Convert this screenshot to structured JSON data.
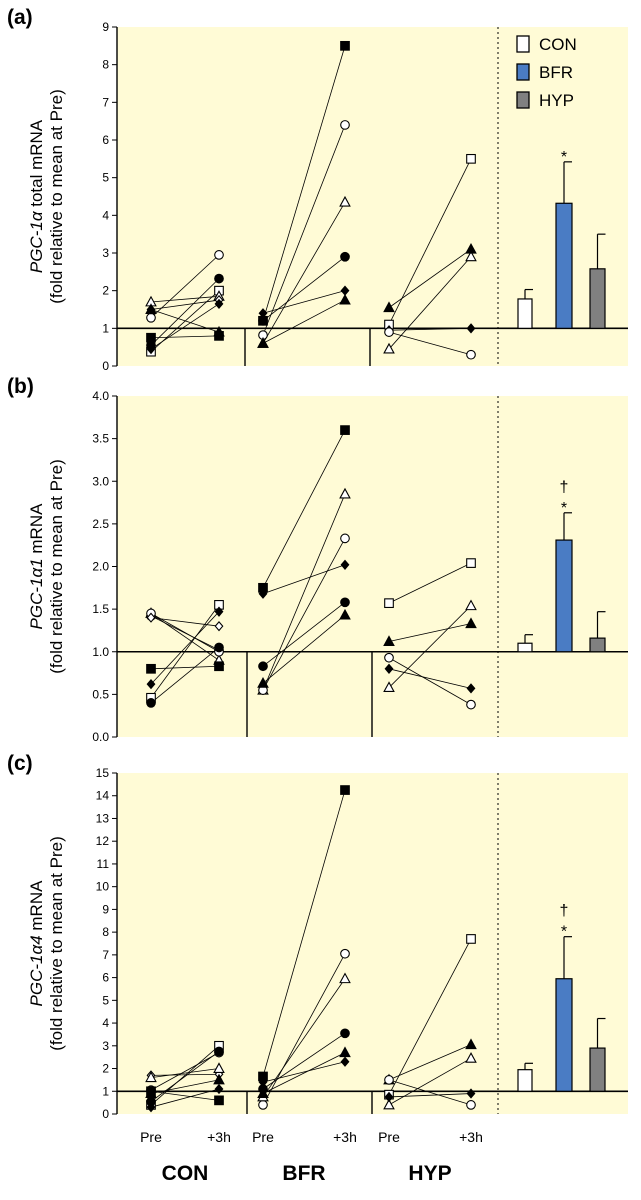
{
  "chart_data": {
    "type": "multi-panel paired scatter with bar summary",
    "x_labels": [
      "Pre",
      "+3h",
      "Pre",
      "+3h",
      "Pre",
      "+3h"
    ],
    "groups": [
      "CON",
      "BFR",
      "HYP"
    ],
    "legend": [
      {
        "name": "CON",
        "color": "#ffffff"
      },
      {
        "name": "BFR",
        "color": "#4a7cc4"
      },
      {
        "name": "HYP",
        "color": "#808080"
      }
    ],
    "colors": {
      "background": "#fffbd6",
      "bfr": "#4a7cc4",
      "hyp": "#808080"
    },
    "panels": [
      {
        "label": "(a)",
        "ylabel_italic": "PGC-1α",
        "ylabel_rest": " total mRNA",
        "ylabel_line2": "(fold relative to mean at Pre)",
        "ylim": [
          0,
          9
        ],
        "yticks": [
          0,
          1,
          2,
          3,
          4,
          5,
          6,
          7,
          8,
          9
        ],
        "tick_labels": [
          "0",
          "1",
          "2",
          "3",
          "4",
          "5",
          "6",
          "7",
          "8",
          "9"
        ],
        "subjects": {
          "CON": [
            {
              "marker": "square-open",
              "pre": 0.38,
              "post": 2.0
            },
            {
              "marker": "circle-open",
              "pre": 1.28,
              "post": 2.95
            },
            {
              "marker": "triangle-open",
              "pre": 1.7,
              "post": 1.85
            },
            {
              "marker": "diamond-open",
              "pre": 1.5,
              "post": 1.75
            },
            {
              "marker": "square-filled",
              "pre": 0.75,
              "post": 0.8
            },
            {
              "marker": "circle-filled",
              "pre": 0.55,
              "post": 2.32
            },
            {
              "marker": "triangle-filled",
              "pre": 1.5,
              "post": 0.9
            },
            {
              "marker": "diamond-filled",
              "pre": 0.45,
              "post": 1.65
            }
          ],
          "BFR": [
            {
              "marker": "square-filled",
              "pre": 1.2,
              "post": 8.5
            },
            {
              "marker": "circle-open",
              "pre": 0.82,
              "post": 6.4
            },
            {
              "marker": "triangle-open",
              "pre": 0.6,
              "post": 4.35
            },
            {
              "marker": "circle-filled",
              "pre": 1.2,
              "post": 2.9
            },
            {
              "marker": "diamond-filled",
              "pre": 1.4,
              "post": 2.0
            },
            {
              "marker": "triangle-filled",
              "pre": 0.6,
              "post": 1.75
            }
          ],
          "HYP": [
            {
              "marker": "square-open",
              "pre": 1.1,
              "post": 5.5
            },
            {
              "marker": "triangle-open",
              "pre": 0.45,
              "post": 2.9
            },
            {
              "marker": "triangle-filled",
              "pre": 1.55,
              "post": 3.1
            },
            {
              "marker": "diamond-filled",
              "pre": 0.95,
              "post": 1.0
            },
            {
              "marker": "circle-open",
              "pre": 0.9,
              "post": 0.3
            }
          ]
        },
        "bars": [
          {
            "group": "CON",
            "mean": 1.78,
            "err": 0.25
          },
          {
            "group": "BFR",
            "mean": 4.32,
            "err": 1.1
          },
          {
            "group": "HYP",
            "mean": 2.58,
            "err": 0.92
          }
        ],
        "annotations": {
          "BFR": "*"
        }
      },
      {
        "label": "(b)",
        "ylabel_italic": "PGC-1α1",
        "ylabel_rest": " mRNA",
        "ylabel_line2": "(fold relative to mean at Pre)",
        "ylim": [
          0,
          4
        ],
        "yticks": [
          0,
          0.5,
          1,
          1.5,
          2,
          2.5,
          3,
          3.5,
          4
        ],
        "tick_labels": [
          "0.0",
          "0.5",
          "1.0",
          "1.5",
          "2.0",
          "2.5",
          "3.0",
          "3.5",
          "4.0"
        ],
        "subjects": {
          "CON": [
            {
              "marker": "triangle-open",
              "pre": 1.45,
              "post": 0.9
            },
            {
              "marker": "circle-open",
              "pre": 1.42,
              "post": 1.02
            },
            {
              "marker": "circle-open",
              "pre": 1.45,
              "post": 1.0
            },
            {
              "marker": "square-open",
              "pre": 0.46,
              "post": 1.55
            },
            {
              "marker": "circle-filled",
              "pre": 0.4,
              "post": 1.05
            },
            {
              "marker": "square-filled",
              "pre": 0.8,
              "post": 0.83
            },
            {
              "marker": "diamond-filled",
              "pre": 0.62,
              "post": 1.47
            },
            {
              "marker": "diamond-open",
              "pre": 1.4,
              "post": 1.3
            }
          ],
          "BFR": [
            {
              "marker": "square-filled",
              "pre": 1.75,
              "post": 3.6
            },
            {
              "marker": "diamond-filled",
              "pre": 1.68,
              "post": 2.02
            },
            {
              "marker": "triangle-open",
              "pre": 0.55,
              "post": 2.85
            },
            {
              "marker": "circle-open",
              "pre": 0.55,
              "post": 2.33
            },
            {
              "marker": "circle-filled",
              "pre": 0.83,
              "post": 1.58
            },
            {
              "marker": "triangle-filled",
              "pre": 0.63,
              "post": 1.43
            }
          ],
          "HYP": [
            {
              "marker": "square-open",
              "pre": 1.57,
              "post": 2.04
            },
            {
              "marker": "triangle-open",
              "pre": 0.58,
              "post": 1.54
            },
            {
              "marker": "triangle-filled",
              "pre": 1.12,
              "post": 1.33
            },
            {
              "marker": "diamond-filled",
              "pre": 0.8,
              "post": 0.57
            },
            {
              "marker": "circle-open",
              "pre": 0.93,
              "post": 0.38
            }
          ]
        },
        "bars": [
          {
            "group": "CON",
            "mean": 1.1,
            "err": 0.1
          },
          {
            "group": "BFR",
            "mean": 2.31,
            "err": 0.32
          },
          {
            "group": "HYP",
            "mean": 1.16,
            "err": 0.31
          }
        ],
        "annotations": {
          "BFR": "†\n*"
        }
      },
      {
        "label": "(c)",
        "ylabel_italic": "PGC-1α4",
        "ylabel_rest": " mRNA",
        "ylabel_line2": "(fold relative to mean at Pre)",
        "ylim": [
          0,
          15
        ],
        "yticks": [
          0,
          1,
          2,
          3,
          4,
          5,
          6,
          7,
          8,
          9,
          10,
          11,
          12,
          13,
          14,
          15
        ],
        "tick_labels": [
          "0",
          "1",
          "2",
          "3",
          "4",
          "5",
          "6",
          "7",
          "8",
          "9",
          "10",
          "11",
          "12",
          "13",
          "14",
          "15"
        ],
        "subjects": {
          "CON": [
            {
              "marker": "square-open",
              "pre": 0.4,
              "post": 3.0
            },
            {
              "marker": "circle-open",
              "pre": 1.05,
              "post": 2.7
            },
            {
              "marker": "diamond-open",
              "pre": 1.7,
              "post": 1.75
            },
            {
              "marker": "triangle-open",
              "pre": 1.6,
              "post": 2.0
            },
            {
              "marker": "circle-filled",
              "pre": 0.55,
              "post": 2.75
            },
            {
              "marker": "square-filled",
              "pre": 1.0,
              "post": 0.6
            },
            {
              "marker": "triangle-filled",
              "pre": 0.9,
              "post": 1.5
            },
            {
              "marker": "diamond-filled",
              "pre": 0.3,
              "post": 1.1
            }
          ],
          "BFR": [
            {
              "marker": "square-filled",
              "pre": 1.65,
              "post": 14.25
            },
            {
              "marker": "circle-open",
              "pre": 0.4,
              "post": 7.05
            },
            {
              "marker": "triangle-open",
              "pre": 0.75,
              "post": 5.95
            },
            {
              "marker": "circle-filled",
              "pre": 1.1,
              "post": 3.55
            },
            {
              "marker": "triangle-filled",
              "pre": 0.9,
              "post": 2.7
            },
            {
              "marker": "diamond-filled",
              "pre": 1.4,
              "post": 2.3
            }
          ],
          "HYP": [
            {
              "marker": "square-open",
              "pre": 0.85,
              "post": 7.7
            },
            {
              "marker": "triangle-filled",
              "pre": 1.5,
              "post": 3.05
            },
            {
              "marker": "triangle-open",
              "pre": 0.4,
              "post": 2.45
            },
            {
              "marker": "diamond-filled",
              "pre": 0.75,
              "post": 0.9
            },
            {
              "marker": "circle-open",
              "pre": 1.5,
              "post": 0.4
            }
          ]
        },
        "bars": [
          {
            "group": "CON",
            "mean": 1.95,
            "err": 0.28
          },
          {
            "group": "BFR",
            "mean": 5.95,
            "err": 1.85
          },
          {
            "group": "HYP",
            "mean": 2.9,
            "err": 1.3
          }
        ],
        "annotations": {
          "BFR": "†\n*"
        }
      }
    ]
  }
}
